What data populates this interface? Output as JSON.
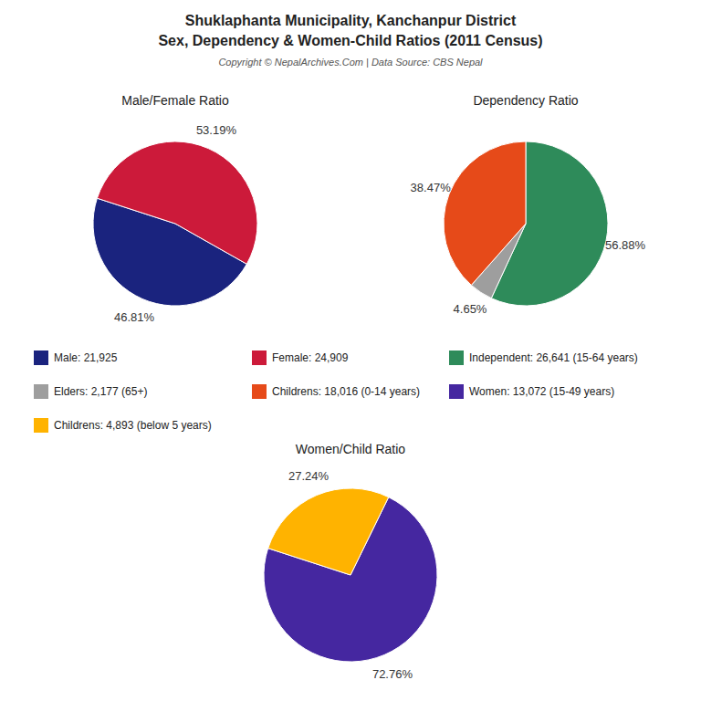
{
  "title": "Shuklaphanta Municipality, Kanchanpur District",
  "subtitle": "Sex, Dependency & Women-Child Ratios (2011 Census)",
  "annotations": [
    "Copyright © NepalArchives.Com | Data Source: CBS Nepal"
  ],
  "chart_data": [
    {
      "type": "pie",
      "title": "Male/Female Ratio",
      "categories": [
        "Male: 21,925",
        "Female: 24,909"
      ],
      "values": [
        46.81,
        53.19
      ],
      "value_labels": [
        "46.81%",
        "53.19%"
      ],
      "colors": [
        "#1a237e",
        "#cc1a3a"
      ],
      "data_labels": true
    },
    {
      "type": "pie",
      "title": "Dependency Ratio",
      "categories": [
        "Independent: 26,641 (15-64 years)",
        "Elders: 2,177 (65+)",
        "Childrens: 18,016 (0-14 years)"
      ],
      "values": [
        56.88,
        4.65,
        38.47
      ],
      "value_labels": [
        "56.88%",
        "4.65%",
        "38.47%"
      ],
      "colors": [
        "#2e8b5a",
        "#9e9e9e",
        "#e64a19"
      ],
      "data_labels": true
    },
    {
      "type": "pie",
      "title": "Women/Child Ratio",
      "categories": [
        "Women: 13,072 (15-49 years)",
        "Childrens: 4,893 (below 5 years)"
      ],
      "values": [
        72.76,
        27.24
      ],
      "value_labels": [
        "72.76%",
        "27.24%"
      ],
      "colors": [
        "#4527a0",
        "#ffb300"
      ],
      "data_labels": true
    }
  ]
}
